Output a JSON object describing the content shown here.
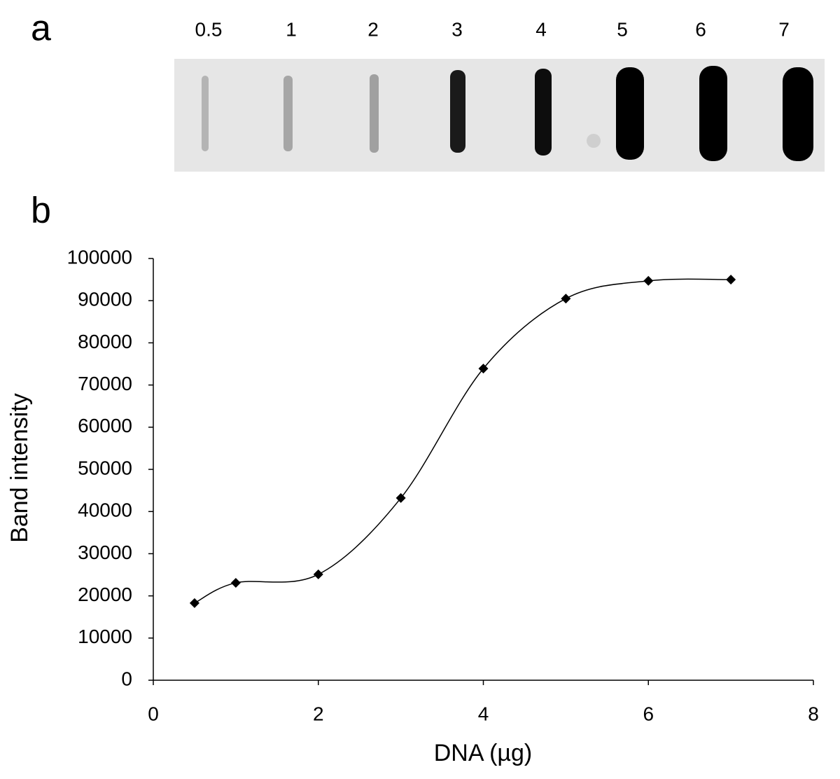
{
  "blot": {
    "panel_label": "a",
    "lane_labels": [
      "0.5",
      "1",
      "2",
      "3",
      "4",
      "5",
      "6",
      "7"
    ]
  },
  "chart_data": {
    "type": "line",
    "panel_label": "b",
    "x_label": "DNA (µg)",
    "y_label": "Band intensity",
    "x": [
      0.5,
      1,
      2,
      3,
      4,
      5,
      6,
      7
    ],
    "values": [
      18300,
      23100,
      25100,
      43200,
      73900,
      90500,
      94700,
      95000
    ],
    "color": "#000000",
    "marker": "diamond",
    "smooth": true,
    "xlim": [
      0,
      8
    ],
    "xticks": [
      0,
      2,
      4,
      6,
      8
    ],
    "ylim": [
      0,
      100000
    ],
    "yticks": [
      0,
      10000,
      20000,
      30000,
      40000,
      50000,
      60000,
      70000,
      80000,
      90000,
      100000
    ],
    "grid": false
  }
}
